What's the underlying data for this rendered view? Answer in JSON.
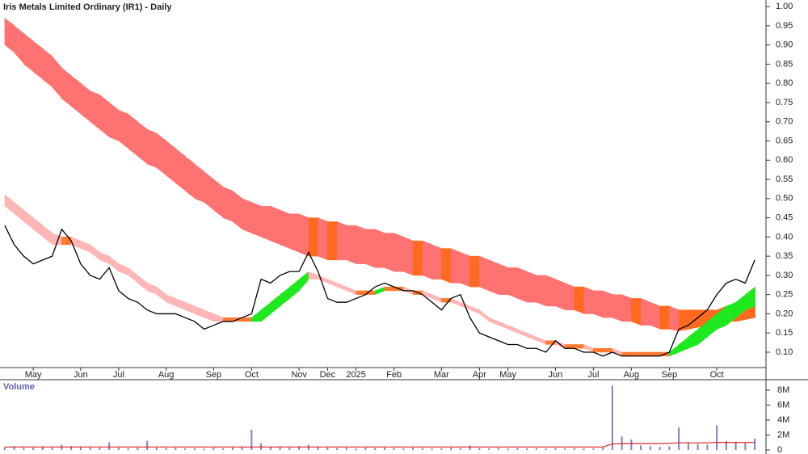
{
  "chart_data": {
    "type": "ribbon-price",
    "title": "Iris Metals Limited Ordinary (IR1) - Daily",
    "categories": [
      null,
      null,
      null,
      "May",
      null,
      null,
      null,
      null,
      "Jun",
      null,
      null,
      null,
      "Jul",
      null,
      null,
      null,
      null,
      "Aug",
      null,
      null,
      null,
      null,
      "Sep",
      null,
      null,
      null,
      "Oct",
      null,
      null,
      null,
      null,
      "Nov",
      null,
      null,
      "Dec",
      null,
      null,
      "2025",
      null,
      null,
      null,
      "Feb",
      null,
      null,
      null,
      null,
      "Mar",
      null,
      null,
      null,
      "Apr",
      null,
      null,
      "May",
      null,
      null,
      null,
      null,
      "Jun",
      null,
      null,
      null,
      "Jul",
      null,
      null,
      null,
      "Aug",
      null,
      null,
      null,
      "Sep",
      null,
      null,
      null,
      null,
      "Oct",
      null,
      null,
      null,
      null
    ],
    "ylim": [
      0.06,
      1.017
    ],
    "yticks": [
      {
        "value": 0.1,
        "label": "0.10"
      },
      {
        "value": 0.15,
        "label": "0.15"
      },
      {
        "value": 0.2,
        "label": "0.20"
      },
      {
        "value": 0.25,
        "label": "0.25"
      },
      {
        "value": 0.3,
        "label": "0.30"
      },
      {
        "value": 0.35,
        "label": "0.35"
      },
      {
        "value": 0.4,
        "label": "0.40"
      },
      {
        "value": 0.45,
        "label": "0.45"
      },
      {
        "value": 0.5,
        "label": "0.50"
      },
      {
        "value": 0.55,
        "label": "0.55"
      },
      {
        "value": 0.6,
        "label": "0.60"
      },
      {
        "value": 0.65,
        "label": "0.65"
      },
      {
        "value": 0.7,
        "label": "0.70"
      },
      {
        "value": 0.75,
        "label": "0.75"
      },
      {
        "value": 0.8,
        "label": "0.80"
      },
      {
        "value": 0.85,
        "label": "0.85"
      },
      {
        "value": 0.9,
        "label": "0.90"
      },
      {
        "value": 0.95,
        "label": "0.95"
      },
      {
        "value": 1.0,
        "label": "1.00"
      }
    ],
    "bands": [
      {
        "color": "#ff7272",
        "flat_color": "#ff6a1f",
        "rising_color": "#ff6a1f",
        "top": [
          0.97,
          0.95,
          0.93,
          0.91,
          0.89,
          0.87,
          0.84,
          0.82,
          0.8,
          0.78,
          0.77,
          0.75,
          0.73,
          0.72,
          0.7,
          0.68,
          0.67,
          0.65,
          0.63,
          0.61,
          0.59,
          0.57,
          0.55,
          0.53,
          0.52,
          0.5,
          0.49,
          0.48,
          0.48,
          0.47,
          0.46,
          0.46,
          0.45,
          0.45,
          0.44,
          0.44,
          0.43,
          0.43,
          0.42,
          0.42,
          0.41,
          0.41,
          0.4,
          0.39,
          0.39,
          0.38,
          0.37,
          0.37,
          0.36,
          0.35,
          0.35,
          0.34,
          0.33,
          0.32,
          0.32,
          0.31,
          0.3,
          0.3,
          0.29,
          0.28,
          0.27,
          0.27,
          0.26,
          0.26,
          0.25,
          0.25,
          0.24,
          0.24,
          0.23,
          0.22,
          0.22,
          0.21,
          0.21,
          0.21,
          0.21,
          0.21,
          0.22,
          0.22,
          0.22,
          0.22
        ],
        "bottom": [
          0.9,
          0.88,
          0.85,
          0.83,
          0.81,
          0.79,
          0.76,
          0.74,
          0.72,
          0.7,
          0.68,
          0.66,
          0.65,
          0.63,
          0.61,
          0.59,
          0.58,
          0.56,
          0.54,
          0.52,
          0.5,
          0.49,
          0.47,
          0.45,
          0.44,
          0.42,
          0.41,
          0.4,
          0.39,
          0.38,
          0.37,
          0.36,
          0.35,
          0.35,
          0.34,
          0.34,
          0.34,
          0.33,
          0.33,
          0.32,
          0.32,
          0.31,
          0.31,
          0.3,
          0.3,
          0.29,
          0.29,
          0.28,
          0.28,
          0.27,
          0.27,
          0.26,
          0.25,
          0.25,
          0.24,
          0.23,
          0.23,
          0.22,
          0.22,
          0.21,
          0.21,
          0.2,
          0.2,
          0.19,
          0.19,
          0.18,
          0.18,
          0.17,
          0.17,
          0.16,
          0.16,
          0.155,
          0.16,
          0.165,
          0.17,
          0.17,
          0.18,
          0.18,
          0.185,
          0.19
        ]
      },
      {
        "color": "#ffb6b6",
        "flat_color": "#ff7a2e",
        "rising_color": "#1ee81e",
        "top": [
          0.51,
          0.49,
          0.47,
          0.45,
          0.43,
          0.41,
          0.4,
          0.4,
          0.39,
          0.38,
          0.36,
          0.35,
          0.33,
          0.32,
          0.3,
          0.28,
          0.27,
          0.25,
          0.24,
          0.23,
          0.22,
          0.21,
          0.2,
          0.19,
          0.19,
          0.19,
          0.19,
          0.21,
          0.23,
          0.25,
          0.27,
          0.29,
          0.31,
          0.3,
          0.29,
          0.28,
          0.27,
          0.26,
          0.26,
          0.26,
          0.27,
          0.27,
          0.27,
          0.26,
          0.26,
          0.25,
          0.24,
          0.24,
          0.23,
          0.22,
          0.21,
          0.19,
          0.18,
          0.17,
          0.16,
          0.15,
          0.14,
          0.13,
          0.13,
          0.12,
          0.12,
          0.12,
          0.11,
          0.11,
          0.11,
          0.1,
          0.1,
          0.1,
          0.1,
          0.1,
          0.1,
          0.12,
          0.14,
          0.16,
          0.18,
          0.2,
          0.22,
          0.23,
          0.25,
          0.27
        ],
        "bottom": [
          0.48,
          0.46,
          0.44,
          0.42,
          0.4,
          0.38,
          0.38,
          0.38,
          0.37,
          0.36,
          0.34,
          0.33,
          0.31,
          0.3,
          0.28,
          0.26,
          0.25,
          0.23,
          0.22,
          0.21,
          0.2,
          0.19,
          0.18,
          0.18,
          0.18,
          0.18,
          0.18,
          0.18,
          0.2,
          0.22,
          0.24,
          0.26,
          0.29,
          0.29,
          0.28,
          0.27,
          0.26,
          0.25,
          0.25,
          0.25,
          0.26,
          0.26,
          0.26,
          0.25,
          0.25,
          0.24,
          0.23,
          0.23,
          0.22,
          0.21,
          0.2,
          0.18,
          0.17,
          0.16,
          0.15,
          0.14,
          0.13,
          0.12,
          0.12,
          0.11,
          0.11,
          0.11,
          0.1,
          0.1,
          0.1,
          0.09,
          0.09,
          0.09,
          0.09,
          0.09,
          0.09,
          0.1,
          0.11,
          0.12,
          0.14,
          0.16,
          0.17,
          0.19,
          0.21,
          0.22
        ]
      }
    ],
    "price": {
      "color": "#000000",
      "values": [
        0.43,
        0.38,
        0.35,
        0.33,
        0.34,
        0.35,
        0.42,
        0.39,
        0.33,
        0.3,
        0.29,
        0.32,
        0.26,
        0.24,
        0.23,
        0.21,
        0.2,
        0.2,
        0.2,
        0.19,
        0.18,
        0.16,
        0.17,
        0.18,
        0.18,
        0.19,
        0.2,
        0.29,
        0.28,
        0.3,
        0.31,
        0.31,
        0.36,
        0.31,
        0.24,
        0.23,
        0.23,
        0.24,
        0.25,
        0.27,
        0.28,
        0.27,
        0.26,
        0.26,
        0.25,
        0.23,
        0.21,
        0.24,
        0.25,
        0.19,
        0.15,
        0.14,
        0.13,
        0.12,
        0.12,
        0.11,
        0.11,
        0.1,
        0.13,
        0.11,
        0.11,
        0.1,
        0.1,
        0.09,
        0.1,
        0.09,
        0.09,
        0.09,
        0.09,
        0.09,
        0.1,
        0.16,
        0.17,
        0.19,
        0.21,
        0.25,
        0.28,
        0.29,
        0.28,
        0.34
      ]
    },
    "volume": {
      "label": "Volume",
      "color": "#8080c0",
      "ylim": [
        0,
        9400000
      ],
      "yticks": [
        0,
        {
          "value": 2000000,
          "label": "2M"
        },
        {
          "value": 4000000,
          "label": "4M"
        },
        {
          "value": 6000000,
          "label": "6M"
        },
        {
          "value": 8000000,
          "label": "8M"
        }
      ],
      "values": [
        350000,
        500000,
        300000,
        300000,
        450000,
        300000,
        700000,
        500000,
        400000,
        300000,
        300000,
        1000000,
        300000,
        250000,
        300000,
        1200000,
        300000,
        250000,
        300000,
        200000,
        250000,
        200000,
        300000,
        200000,
        300000,
        400000,
        2700000,
        900000,
        400000,
        350000,
        300000,
        500000,
        700000,
        400000,
        300000,
        250000,
        300000,
        200000,
        300000,
        250000,
        300000,
        250000,
        200000,
        300000,
        250000,
        200000,
        200000,
        300000,
        250000,
        600000,
        250000,
        200000,
        300000,
        200000,
        250000,
        200000,
        250000,
        200000,
        250000,
        200000,
        250000,
        200000,
        200000,
        300000,
        8600000,
        1800000,
        1400000,
        600000,
        500000,
        400000,
        500000,
        3000000,
        1000000,
        800000,
        700000,
        3300000,
        1200000,
        1100000,
        900000,
        1500000
      ],
      "ma": {
        "color": "#e02020",
        "values": [
          400000,
          400000,
          400000,
          400000,
          400000,
          400000,
          400000,
          400000,
          400000,
          400000,
          400000,
          400000,
          400000,
          400000,
          400000,
          400000,
          400000,
          400000,
          400000,
          400000,
          400000,
          400000,
          400000,
          400000,
          400000,
          400000,
          400000,
          400000,
          400000,
          400000,
          400000,
          400000,
          400000,
          400000,
          400000,
          400000,
          400000,
          400000,
          400000,
          400000,
          400000,
          400000,
          400000,
          400000,
          400000,
          400000,
          400000,
          400000,
          400000,
          400000,
          400000,
          400000,
          400000,
          400000,
          400000,
          400000,
          400000,
          400000,
          400000,
          400000,
          400000,
          400000,
          400000,
          400000,
          800000,
          850000,
          850000,
          850000,
          850000,
          850000,
          900000,
          950000,
          950000,
          950000,
          950000,
          1000000,
          1000000,
          1000000,
          1000000,
          1000000
        ]
      }
    }
  }
}
